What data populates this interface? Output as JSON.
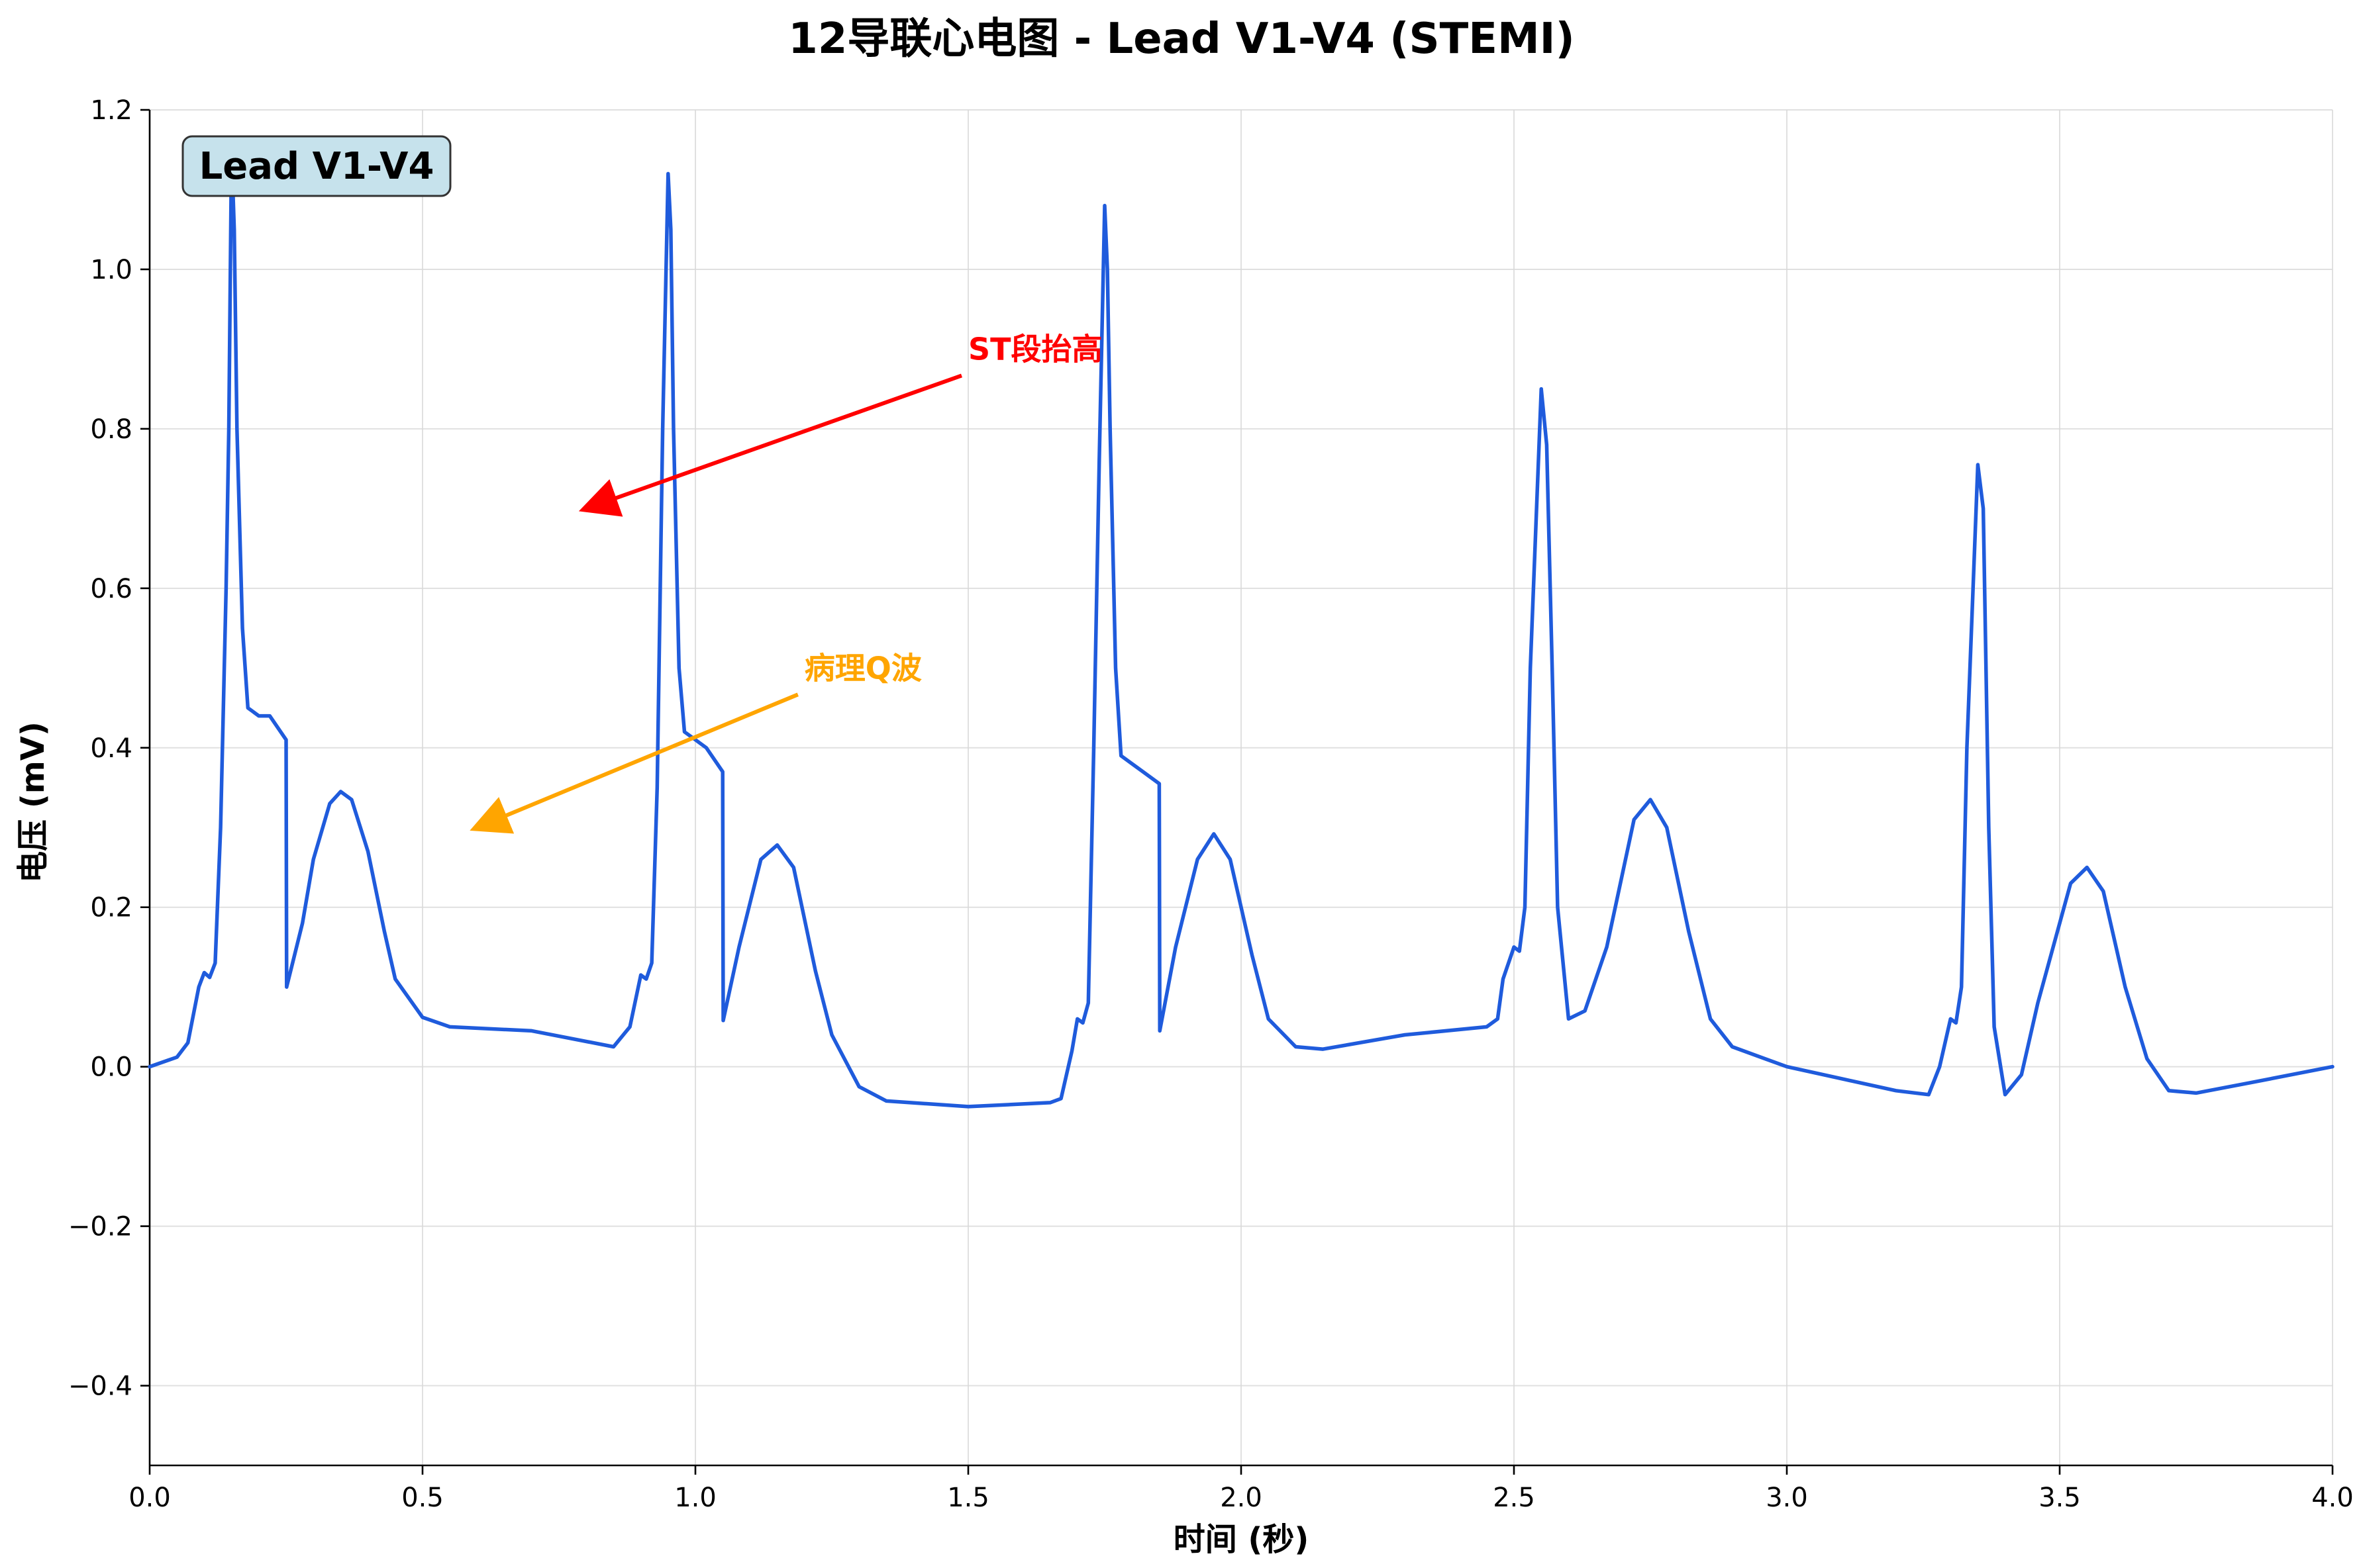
{
  "chart_data": {
    "type": "line",
    "title": "12导联心电图 - Lead V1-V4 (STEMI)",
    "xlabel": "时间 (秒)",
    "ylabel": "电压 (mV)",
    "xlim": [
      0,
      4.0
    ],
    "ylim": [
      -0.5,
      1.2
    ],
    "x_ticks": [
      "0.0",
      "0.5",
      "1.0",
      "1.5",
      "2.0",
      "2.5",
      "3.0",
      "3.5",
      "4.0"
    ],
    "y_ticks": [
      "−0.4",
      "−0.2",
      "0.0",
      "0.2",
      "0.4",
      "0.6",
      "0.8",
      "1.0",
      "1.2"
    ],
    "x_tick_values": [
      0,
      0.5,
      1.0,
      1.5,
      2.0,
      2.5,
      3.0,
      3.5,
      4.0
    ],
    "y_tick_values": [
      -0.4,
      -0.2,
      0.0,
      0.2,
      0.4,
      0.6,
      0.8,
      1.0,
      1.2
    ],
    "grid": true,
    "lead_label": "Lead V1-V4",
    "series": [
      {
        "color": "#1f5bdc",
        "points": [
          [
            0.0,
            0.0
          ],
          [
            0.05,
            0.012
          ],
          [
            0.07,
            0.03
          ],
          [
            0.09,
            0.1
          ],
          [
            0.1,
            0.118
          ],
          [
            0.11,
            0.112
          ],
          [
            0.12,
            0.13
          ],
          [
            0.13,
            0.3
          ],
          [
            0.14,
            0.6
          ],
          [
            0.145,
            0.8
          ],
          [
            0.15,
            1.15
          ],
          [
            0.155,
            1.05
          ],
          [
            0.16,
            0.8
          ],
          [
            0.17,
            0.55
          ],
          [
            0.18,
            0.45
          ],
          [
            0.2,
            0.44
          ],
          [
            0.22,
            0.44
          ],
          [
            0.25,
            0.41
          ],
          [
            0.251,
            0.1
          ],
          [
            0.28,
            0.18
          ],
          [
            0.3,
            0.26
          ],
          [
            0.33,
            0.33
          ],
          [
            0.35,
            0.345
          ],
          [
            0.37,
            0.335
          ],
          [
            0.4,
            0.27
          ],
          [
            0.43,
            0.17
          ],
          [
            0.45,
            0.11
          ],
          [
            0.5,
            0.062
          ],
          [
            0.55,
            0.05
          ],
          [
            0.7,
            0.045
          ],
          [
            0.85,
            0.025
          ],
          [
            0.88,
            0.05
          ],
          [
            0.9,
            0.115
          ],
          [
            0.91,
            0.11
          ],
          [
            0.92,
            0.13
          ],
          [
            0.93,
            0.35
          ],
          [
            0.94,
            0.8
          ],
          [
            0.95,
            1.12
          ],
          [
            0.955,
            1.05
          ],
          [
            0.96,
            0.8
          ],
          [
            0.97,
            0.5
          ],
          [
            0.98,
            0.42
          ],
          [
            1.0,
            0.41
          ],
          [
            1.02,
            0.4
          ],
          [
            1.05,
            0.37
          ],
          [
            1.051,
            0.058
          ],
          [
            1.08,
            0.15
          ],
          [
            1.12,
            0.26
          ],
          [
            1.15,
            0.278
          ],
          [
            1.18,
            0.25
          ],
          [
            1.22,
            0.12
          ],
          [
            1.25,
            0.04
          ],
          [
            1.3,
            -0.025
          ],
          [
            1.35,
            -0.043
          ],
          [
            1.5,
            -0.05
          ],
          [
            1.65,
            -0.045
          ],
          [
            1.67,
            -0.04
          ],
          [
            1.69,
            0.02
          ],
          [
            1.7,
            0.06
          ],
          [
            1.71,
            0.055
          ],
          [
            1.72,
            0.08
          ],
          [
            1.73,
            0.4
          ],
          [
            1.74,
            0.76
          ],
          [
            1.75,
            1.08
          ],
          [
            1.755,
            1.0
          ],
          [
            1.76,
            0.8
          ],
          [
            1.77,
            0.5
          ],
          [
            1.78,
            0.39
          ],
          [
            1.8,
            0.38
          ],
          [
            1.82,
            0.37
          ],
          [
            1.85,
            0.355
          ],
          [
            1.851,
            0.045
          ],
          [
            1.88,
            0.15
          ],
          [
            1.92,
            0.26
          ],
          [
            1.95,
            0.292
          ],
          [
            1.98,
            0.26
          ],
          [
            2.02,
            0.14
          ],
          [
            2.05,
            0.06
          ],
          [
            2.1,
            0.025
          ],
          [
            2.15,
            0.022
          ],
          [
            2.3,
            0.04
          ],
          [
            2.45,
            0.05
          ],
          [
            2.47,
            0.06
          ],
          [
            2.48,
            0.11
          ],
          [
            2.5,
            0.15
          ],
          [
            2.51,
            0.145
          ],
          [
            2.52,
            0.2
          ],
          [
            2.53,
            0.5
          ],
          [
            2.55,
            0.85
          ],
          [
            2.56,
            0.78
          ],
          [
            2.57,
            0.5
          ],
          [
            2.58,
            0.2
          ],
          [
            2.6,
            0.06
          ],
          [
            2.63,
            0.07
          ],
          [
            2.67,
            0.15
          ],
          [
            2.72,
            0.31
          ],
          [
            2.75,
            0.335
          ],
          [
            2.78,
            0.3
          ],
          [
            2.82,
            0.17
          ],
          [
            2.86,
            0.06
          ],
          [
            2.9,
            0.025
          ],
          [
            3.0,
            0.0
          ],
          [
            3.1,
            -0.015
          ],
          [
            3.2,
            -0.03
          ],
          [
            3.26,
            -0.035
          ],
          [
            3.28,
            0.0
          ],
          [
            3.3,
            0.06
          ],
          [
            3.31,
            0.055
          ],
          [
            3.32,
            0.1
          ],
          [
            3.33,
            0.4
          ],
          [
            3.35,
            0.755
          ],
          [
            3.36,
            0.7
          ],
          [
            3.37,
            0.3
          ],
          [
            3.38,
            0.05
          ],
          [
            3.4,
            -0.035
          ],
          [
            3.43,
            -0.01
          ],
          [
            3.46,
            0.08
          ],
          [
            3.52,
            0.23
          ],
          [
            3.55,
            0.25
          ],
          [
            3.58,
            0.22
          ],
          [
            3.62,
            0.1
          ],
          [
            3.66,
            0.01
          ],
          [
            3.7,
            -0.03
          ],
          [
            3.75,
            -0.033
          ],
          [
            3.85,
            -0.02
          ],
          [
            4.0,
            0.0
          ]
        ]
      }
    ],
    "annotations": [
      {
        "text": "ST段抬高",
        "color": "#ff0000",
        "xytext": [
          1.5,
          0.9
        ],
        "xy": [
          0.8,
          0.7
        ]
      },
      {
        "text": "病理Q波",
        "color": "#ffa500",
        "xytext": [
          1.2,
          0.5
        ],
        "xy": [
          0.6,
          0.3
        ]
      }
    ]
  }
}
